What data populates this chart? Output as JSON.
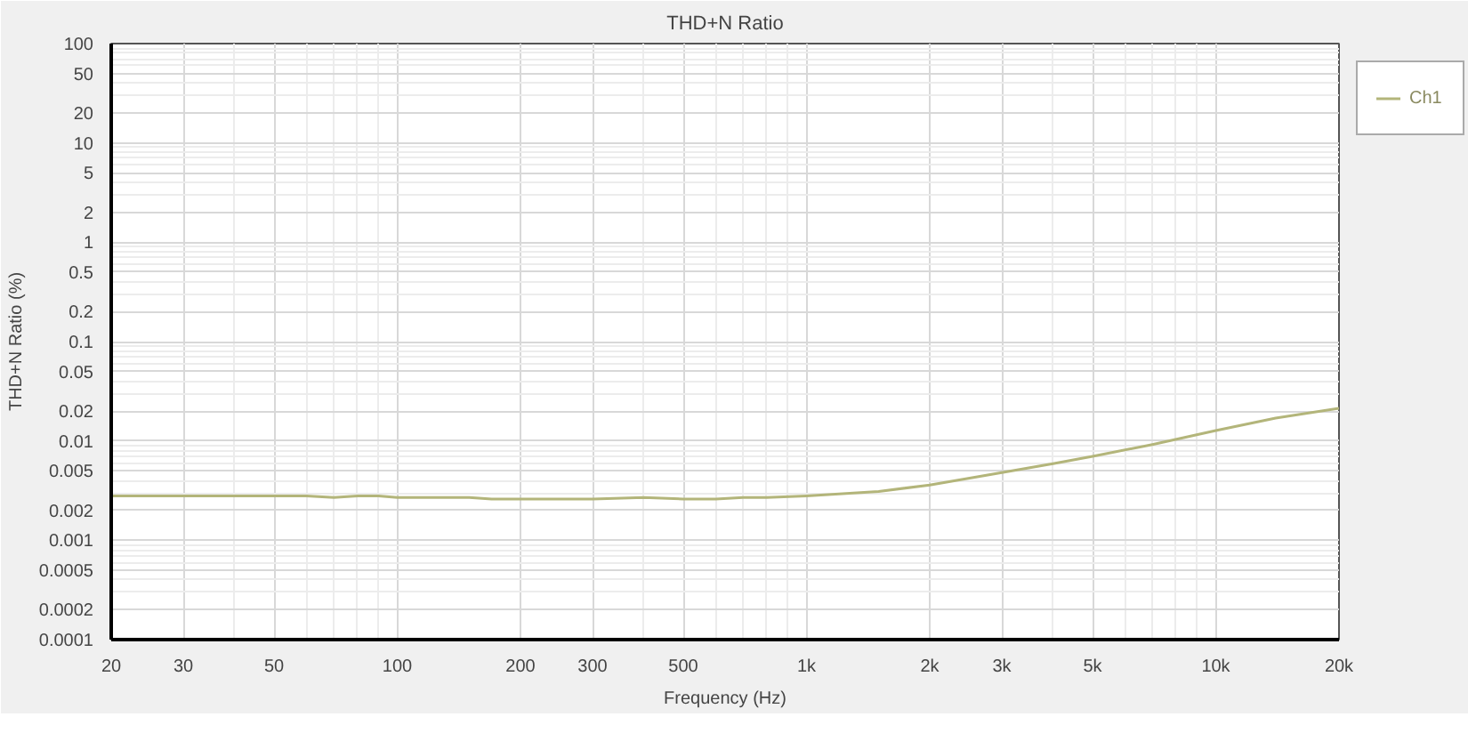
{
  "chart_data": {
    "type": "line",
    "title": "THD+N Ratio",
    "xlabel": "Frequency (Hz)",
    "ylabel": "THD+N Ratio (%)",
    "log": "xy",
    "grid": true,
    "legend": "top right",
    "line_style": "solid",
    "marker": "none",
    "xlim": [
      20,
      20000
    ],
    "ylim": [
      0.0001,
      100
    ],
    "xticks": [
      20,
      30,
      50,
      100,
      200,
      300,
      500,
      {
        "value": 1000,
        "label": "1k"
      },
      {
        "value": 2000,
        "label": "2k"
      },
      {
        "value": 3000,
        "label": "3k"
      },
      {
        "value": 5000,
        "label": "5k"
      },
      {
        "value": 10000,
        "label": "10k"
      },
      {
        "value": 20000,
        "label": "20k"
      }
    ],
    "yticks": [
      0.0001,
      0.0002,
      0.0005,
      0.001,
      0.002,
      0.005,
      0.01,
      0.02,
      0.05,
      0.1,
      0.2,
      0.5,
      1,
      2,
      5,
      10,
      20,
      50,
      100
    ],
    "series": [
      {
        "name": "Ch1",
        "color": "#b3b57a",
        "x": [
          20,
          30,
          40,
          50,
          60,
          70,
          80,
          90,
          100,
          150,
          170,
          200,
          300,
          400,
          500,
          600,
          700,
          800,
          1000,
          1500,
          2000,
          3000,
          4000,
          5000,
          7000,
          10000,
          14000,
          20000
        ],
        "values": [
          0.0028,
          0.0028,
          0.0028,
          0.0028,
          0.0028,
          0.0027,
          0.0028,
          0.0028,
          0.0027,
          0.0027,
          0.0026,
          0.0026,
          0.0026,
          0.0027,
          0.0026,
          0.0026,
          0.0027,
          0.0027,
          0.0028,
          0.0031,
          0.0036,
          0.0048,
          0.0059,
          0.007,
          0.0092,
          0.0127,
          0.017,
          0.0213
        ]
      }
    ]
  }
}
